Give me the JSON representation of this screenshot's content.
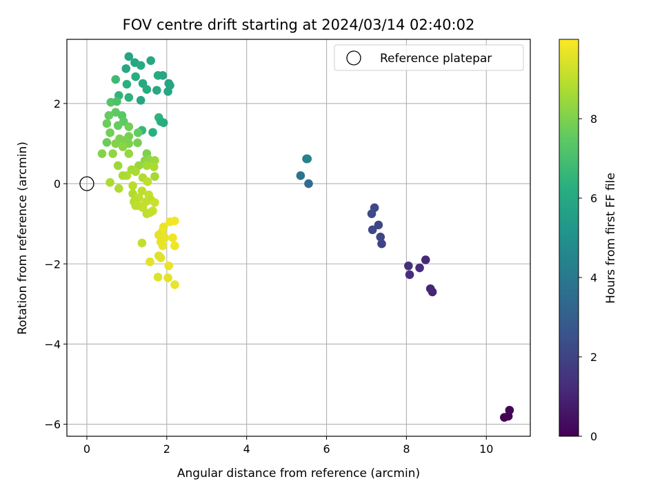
{
  "chart_data": {
    "type": "scatter",
    "title": "FOV centre drift starting at 2024/03/14 02:40:02",
    "xlabel": "Angular distance from reference (arcmin)",
    "ylabel": "Rotation from reference (arcmin)",
    "xlim": [
      -0.5,
      11.1
    ],
    "ylim": [
      -6.3,
      3.6
    ],
    "xticks": [
      0,
      2,
      4,
      6,
      8,
      10
    ],
    "xtick_labels": [
      "0",
      "2",
      "4",
      "6",
      "8",
      "10"
    ],
    "yticks": [
      2,
      0,
      -2,
      -4,
      -6
    ],
    "ytick_labels": [
      "2",
      "0",
      "−2",
      "−4",
      "−6"
    ],
    "grid": true,
    "legend": {
      "position": "top-right",
      "entries": [
        "Reference platepar"
      ]
    },
    "colorbar": {
      "label": "Hours from first FF file",
      "range": [
        0,
        10
      ],
      "ticks": [
        0,
        2,
        4,
        6,
        8
      ],
      "tick_labels": [
        "0",
        "2",
        "4",
        "6",
        "8"
      ],
      "colormap": "viridis"
    },
    "reference_point": {
      "x": 0,
      "y": 0,
      "name": "Reference platepar"
    },
    "points": [
      {
        "x": 10.45,
        "y": -5.83,
        "t": 0.0
      },
      {
        "x": 10.55,
        "y": -5.8,
        "t": 0.05
      },
      {
        "x": 10.58,
        "y": -5.65,
        "t": 0.1
      },
      {
        "x": 8.65,
        "y": -2.7,
        "t": 1.0
      },
      {
        "x": 8.6,
        "y": -2.62,
        "t": 1.05
      },
      {
        "x": 8.48,
        "y": -1.9,
        "t": 1.15
      },
      {
        "x": 8.33,
        "y": -2.1,
        "t": 1.25
      },
      {
        "x": 8.08,
        "y": -2.27,
        "t": 1.3
      },
      {
        "x": 8.05,
        "y": -2.05,
        "t": 1.35
      },
      {
        "x": 7.38,
        "y": -1.5,
        "t": 2.0
      },
      {
        "x": 7.35,
        "y": -1.33,
        "t": 2.05
      },
      {
        "x": 7.3,
        "y": -1.03,
        "t": 2.1
      },
      {
        "x": 7.2,
        "y": -0.6,
        "t": 2.15
      },
      {
        "x": 7.15,
        "y": -1.15,
        "t": 2.2
      },
      {
        "x": 7.13,
        "y": -0.75,
        "t": 2.25
      },
      {
        "x": 5.55,
        "y": 0.0,
        "t": 3.5
      },
      {
        "x": 5.35,
        "y": 0.2,
        "t": 3.8
      },
      {
        "x": 5.5,
        "y": 0.62,
        "t": 4.0
      },
      {
        "x": 5.52,
        "y": 0.62,
        "t": 4.4
      },
      {
        "x": 1.05,
        "y": 3.17,
        "t": 5.8
      },
      {
        "x": 1.2,
        "y": 3.02,
        "t": 5.9
      },
      {
        "x": 1.6,
        "y": 3.07,
        "t": 6.0
      },
      {
        "x": 1.35,
        "y": 2.95,
        "t": 6.1
      },
      {
        "x": 0.98,
        "y": 2.87,
        "t": 6.0
      },
      {
        "x": 1.78,
        "y": 2.7,
        "t": 6.1
      },
      {
        "x": 1.9,
        "y": 2.7,
        "t": 6.0
      },
      {
        "x": 1.22,
        "y": 2.67,
        "t": 6.2
      },
      {
        "x": 1.4,
        "y": 2.5,
        "t": 6.0
      },
      {
        "x": 2.05,
        "y": 2.5,
        "t": 5.8
      },
      {
        "x": 2.08,
        "y": 2.45,
        "t": 5.9
      },
      {
        "x": 1.0,
        "y": 2.48,
        "t": 6.3
      },
      {
        "x": 1.5,
        "y": 2.35,
        "t": 6.1
      },
      {
        "x": 1.75,
        "y": 2.33,
        "t": 6.0
      },
      {
        "x": 2.03,
        "y": 2.3,
        "t": 5.9
      },
      {
        "x": 1.35,
        "y": 2.08,
        "t": 5.9
      },
      {
        "x": 1.05,
        "y": 2.15,
        "t": 6.4
      },
      {
        "x": 0.8,
        "y": 2.2,
        "t": 6.5
      },
      {
        "x": 0.72,
        "y": 2.6,
        "t": 6.8
      },
      {
        "x": 1.8,
        "y": 1.65,
        "t": 6.5
      },
      {
        "x": 1.85,
        "y": 1.55,
        "t": 6.3
      },
      {
        "x": 1.92,
        "y": 1.52,
        "t": 6.2
      },
      {
        "x": 1.65,
        "y": 1.28,
        "t": 6.3
      },
      {
        "x": 1.38,
        "y": 1.33,
        "t": 6.6
      },
      {
        "x": 0.6,
        "y": 2.03,
        "t": 7.3
      },
      {
        "x": 0.75,
        "y": 2.05,
        "t": 7.1
      },
      {
        "x": 0.72,
        "y": 1.78,
        "t": 7.5
      },
      {
        "x": 0.55,
        "y": 1.7,
        "t": 7.6
      },
      {
        "x": 0.88,
        "y": 1.7,
        "t": 7.4
      },
      {
        "x": 0.92,
        "y": 1.55,
        "t": 7.5
      },
      {
        "x": 0.5,
        "y": 1.5,
        "t": 7.7
      },
      {
        "x": 0.78,
        "y": 1.45,
        "t": 7.6
      },
      {
        "x": 1.05,
        "y": 1.42,
        "t": 7.8
      },
      {
        "x": 0.58,
        "y": 1.27,
        "t": 7.8
      },
      {
        "x": 1.28,
        "y": 1.27,
        "t": 7.6
      },
      {
        "x": 1.05,
        "y": 1.18,
        "t": 7.9
      },
      {
        "x": 0.82,
        "y": 1.12,
        "t": 8.0
      },
      {
        "x": 0.95,
        "y": 1.08,
        "t": 8.0
      },
      {
        "x": 0.5,
        "y": 1.03,
        "t": 7.7
      },
      {
        "x": 0.72,
        "y": 1.0,
        "t": 8.1
      },
      {
        "x": 1.05,
        "y": 1.0,
        "t": 8.0
      },
      {
        "x": 1.27,
        "y": 1.02,
        "t": 7.9
      },
      {
        "x": 0.9,
        "y": 0.92,
        "t": 8.2
      },
      {
        "x": 0.38,
        "y": 0.75,
        "t": 8.1
      },
      {
        "x": 0.65,
        "y": 0.75,
        "t": 8.3
      },
      {
        "x": 1.05,
        "y": 0.75,
        "t": 8.4
      },
      {
        "x": 1.5,
        "y": 0.75,
        "t": 8.0
      },
      {
        "x": 1.45,
        "y": 0.57,
        "t": 8.2
      },
      {
        "x": 1.55,
        "y": 0.6,
        "t": 8.3
      },
      {
        "x": 1.7,
        "y": 0.58,
        "t": 8.5
      },
      {
        "x": 1.3,
        "y": 0.45,
        "t": 8.4
      },
      {
        "x": 1.5,
        "y": 0.45,
        "t": 8.6
      },
      {
        "x": 1.68,
        "y": 0.42,
        "t": 8.7
      },
      {
        "x": 0.78,
        "y": 0.45,
        "t": 8.5
      },
      {
        "x": 1.12,
        "y": 0.35,
        "t": 8.6
      },
      {
        "x": 1.22,
        "y": 0.3,
        "t": 8.7
      },
      {
        "x": 1.0,
        "y": 0.2,
        "t": 8.8
      },
      {
        "x": 0.9,
        "y": 0.2,
        "t": 8.7
      },
      {
        "x": 1.4,
        "y": 0.15,
        "t": 8.8
      },
      {
        "x": 1.7,
        "y": 0.18,
        "t": 8.6
      },
      {
        "x": 0.58,
        "y": 0.03,
        "t": 8.7
      },
      {
        "x": 1.52,
        "y": 0.05,
        "t": 9.0
      },
      {
        "x": 1.15,
        "y": -0.05,
        "t": 8.9
      },
      {
        "x": 0.8,
        "y": -0.12,
        "t": 8.8
      },
      {
        "x": 1.38,
        "y": -0.18,
        "t": 9.0
      },
      {
        "x": 1.15,
        "y": -0.25,
        "t": 8.8
      },
      {
        "x": 1.55,
        "y": -0.28,
        "t": 9.1
      },
      {
        "x": 1.3,
        "y": -0.35,
        "t": 9.0
      },
      {
        "x": 1.6,
        "y": -0.4,
        "t": 9.0
      },
      {
        "x": 1.18,
        "y": -0.45,
        "t": 8.9
      },
      {
        "x": 1.48,
        "y": -0.45,
        "t": 9.1
      },
      {
        "x": 1.7,
        "y": -0.47,
        "t": 9.2
      },
      {
        "x": 1.3,
        "y": -0.55,
        "t": 9.0
      },
      {
        "x": 1.4,
        "y": -0.6,
        "t": 9.1
      },
      {
        "x": 1.22,
        "y": -0.55,
        "t": 9.0
      },
      {
        "x": 1.65,
        "y": -0.68,
        "t": 9.2
      },
      {
        "x": 1.5,
        "y": -0.75,
        "t": 9.0
      },
      {
        "x": 1.58,
        "y": -0.72,
        "t": 9.1
      },
      {
        "x": 2.08,
        "y": -0.95,
        "t": 9.8
      },
      {
        "x": 2.2,
        "y": -0.93,
        "t": 9.85
      },
      {
        "x": 1.92,
        "y": -1.08,
        "t": 9.7
      },
      {
        "x": 1.88,
        "y": -1.2,
        "t": 9.75
      },
      {
        "x": 1.8,
        "y": -1.28,
        "t": 9.6
      },
      {
        "x": 1.95,
        "y": -1.35,
        "t": 9.7
      },
      {
        "x": 2.15,
        "y": -1.35,
        "t": 9.8
      },
      {
        "x": 1.85,
        "y": -1.45,
        "t": 9.65
      },
      {
        "x": 1.9,
        "y": -1.55,
        "t": 9.7
      },
      {
        "x": 2.2,
        "y": -1.55,
        "t": 9.8
      },
      {
        "x": 1.38,
        "y": -1.48,
        "t": 9.1
      },
      {
        "x": 1.85,
        "y": -1.85,
        "t": 9.6
      },
      {
        "x": 1.8,
        "y": -1.8,
        "t": 9.5
      },
      {
        "x": 1.58,
        "y": -1.95,
        "t": 9.6
      },
      {
        "x": 2.05,
        "y": -2.05,
        "t": 9.7
      },
      {
        "x": 1.78,
        "y": -2.33,
        "t": 9.5
      },
      {
        "x": 2.03,
        "y": -2.35,
        "t": 9.6
      },
      {
        "x": 2.2,
        "y": -2.52,
        "t": 9.7
      }
    ]
  }
}
